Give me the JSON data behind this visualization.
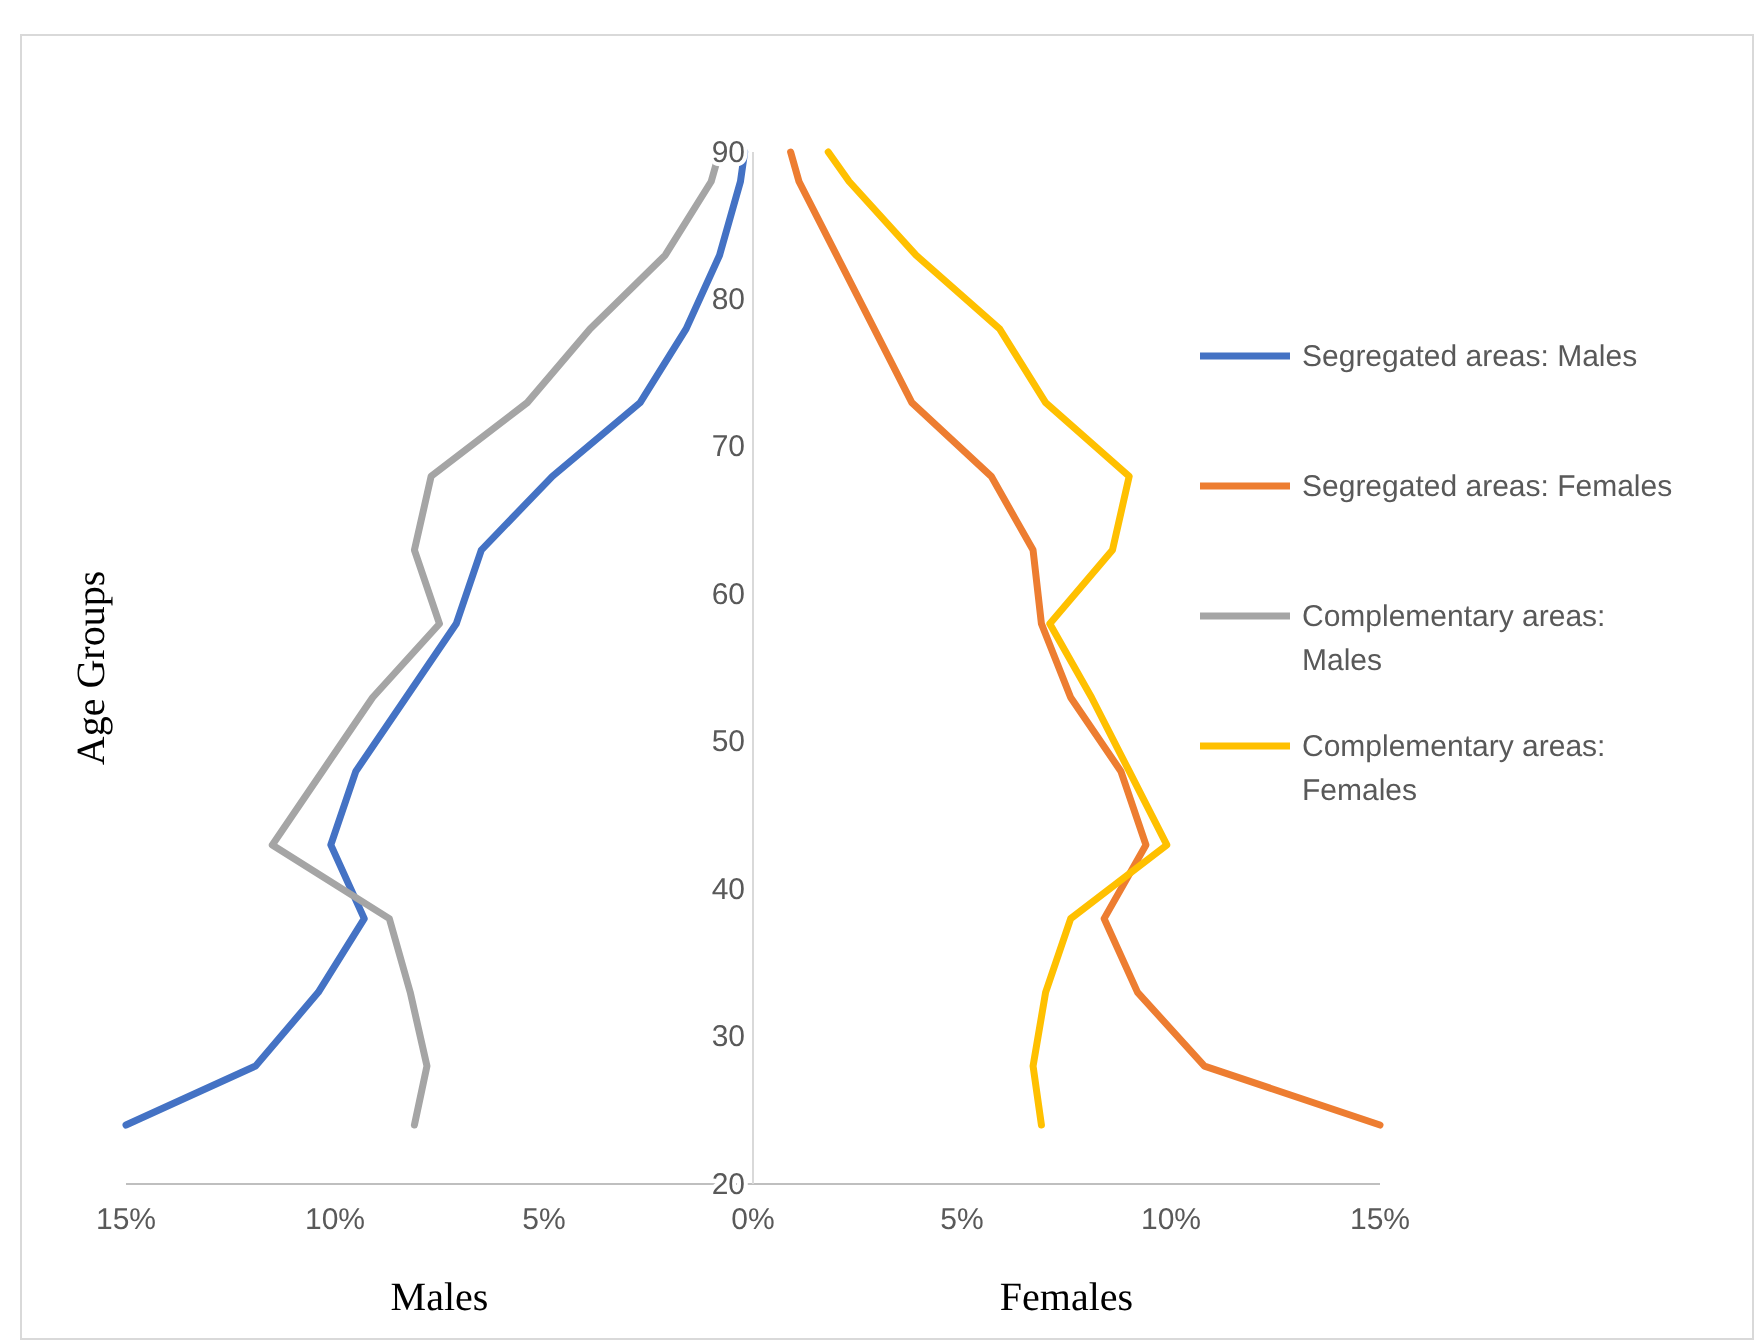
{
  "chart_data": {
    "type": "line",
    "orientation": "horizontal",
    "ylabel": "Age Groups",
    "annotations": [
      "Males",
      "Females"
    ],
    "x": [
      24,
      28,
      33,
      38,
      43,
      48,
      53,
      58,
      63,
      68,
      73,
      78,
      83,
      88,
      90
    ],
    "xlim": [
      -15,
      15
    ],
    "xticks": [
      {
        "value": -15,
        "label": "15%"
      },
      {
        "value": -10,
        "label": "10%"
      },
      {
        "value": -5,
        "label": "5%"
      },
      {
        "value": 0,
        "label": "0%"
      },
      {
        "value": 5,
        "label": "5%"
      },
      {
        "value": 10,
        "label": "10%"
      },
      {
        "value": 15,
        "label": "15%"
      }
    ],
    "ylim": [
      20,
      90
    ],
    "yticks": [
      20,
      30,
      40,
      50,
      60,
      70,
      80,
      90
    ],
    "grid": false,
    "legend": "right",
    "marker": "none",
    "line_style": "solid",
    "series": [
      {
        "name": "Segregated areas: Males",
        "color": "#4472c4",
        "values": [
          -15.0,
          -11.9,
          -10.4,
          -9.3,
          -10.1,
          -9.5,
          -8.3,
          -7.1,
          -6.5,
          -4.8,
          -2.7,
          -1.6,
          -0.8,
          -0.3,
          -0.2
        ]
      },
      {
        "name": "Segregated areas: Females",
        "color": "#ed7d31",
        "values": [
          15.0,
          10.8,
          9.2,
          8.4,
          9.4,
          8.8,
          7.6,
          6.9,
          6.7,
          5.7,
          3.8,
          2.9,
          2.0,
          1.1,
          0.9
        ]
      },
      {
        "name": "Complementary areas: Males",
        "color": "#a5a5a5",
        "values": [
          -8.1,
          -7.8,
          -8.2,
          -8.7,
          -11.5,
          -10.3,
          -9.1,
          -7.5,
          -8.1,
          -7.7,
          -5.4,
          -3.9,
          -2.1,
          -1.0,
          -0.8
        ]
      },
      {
        "name": "Complementary areas: Females",
        "color": "#ffc000",
        "values": [
          6.9,
          6.7,
          7.0,
          7.6,
          9.9,
          9.0,
          8.1,
          7.1,
          8.6,
          9.0,
          7.0,
          5.9,
          3.9,
          2.3,
          1.8
        ]
      }
    ]
  }
}
